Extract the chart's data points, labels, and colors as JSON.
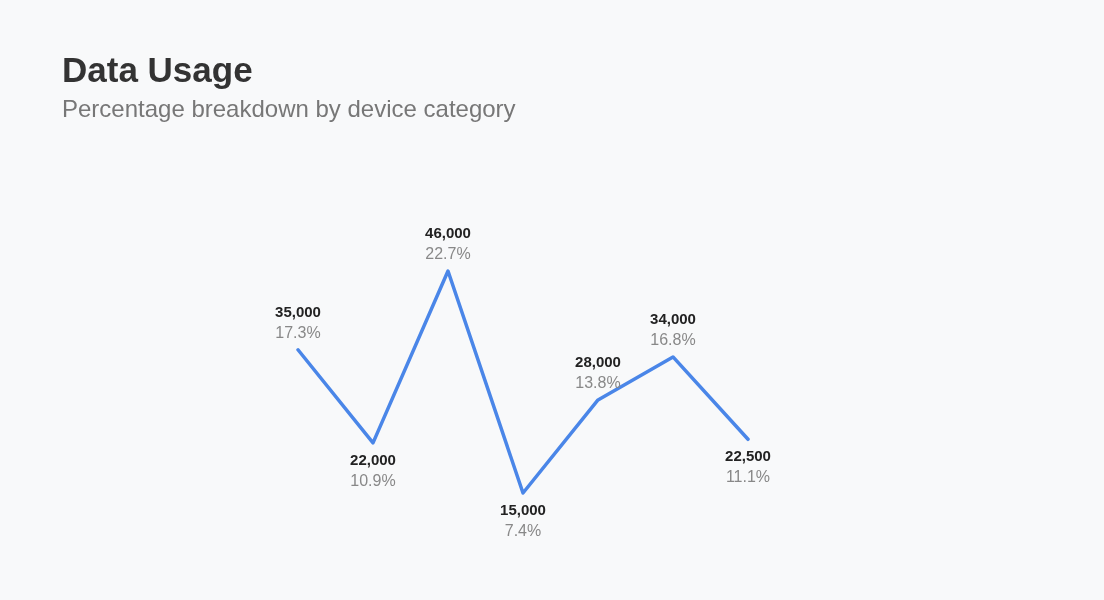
{
  "chart_data": {
    "type": "line",
    "title": "Data Usage",
    "subtitle": "Percentage breakdown by device category",
    "categories": [
      null,
      null,
      null,
      null,
      null,
      null,
      null
    ],
    "values": [
      35000,
      22000,
      46000,
      15000,
      28000,
      34000,
      22500
    ],
    "color": "#4a86e8",
    "value_labels": [
      "35,000\n17.3%",
      "22,000\n10.9%",
      "46,000\n22.7%",
      "15,000\n7.4%",
      "28,000\n13.8%",
      "34,000\n16.8%",
      "22,500\n11.1%"
    ],
    "marker": "none"
  }
}
